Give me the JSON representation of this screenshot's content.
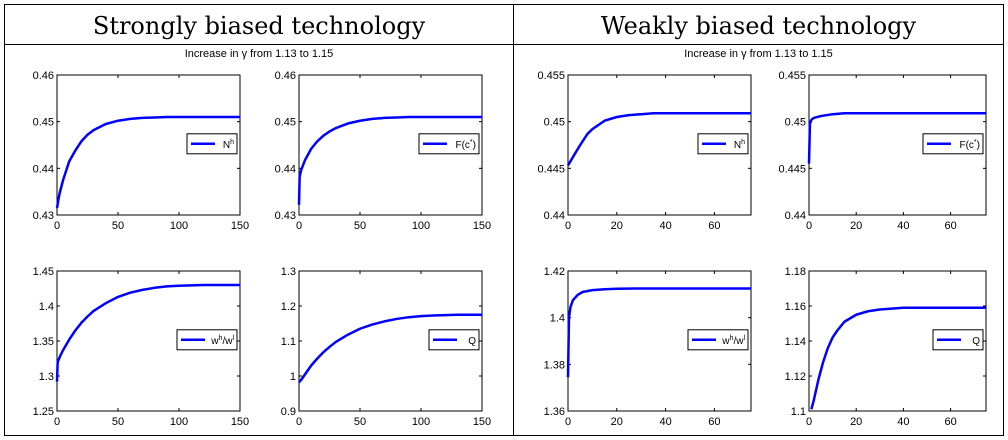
{
  "panels": [
    {
      "title": "Strongly biased technology",
      "subtitle": "Increase in γ from 1.13 to 1.15"
    },
    {
      "title": "Weakly biased technology",
      "subtitle": "Increase in γ from 1.13 to 1.15"
    }
  ],
  "colors": {
    "series": "#0000ff",
    "axis": "#000000",
    "background": "#ffffff"
  },
  "chart_data": [
    {
      "type": "line",
      "panel": "Strongly biased technology",
      "legend": {
        "base": "N",
        "sup": "h"
      },
      "legend_position": "right",
      "xlim": [
        0,
        150
      ],
      "ylim": [
        0.43,
        0.46
      ],
      "xticks": [
        0,
        50,
        100,
        150
      ],
      "yticks": [
        0.43,
        0.44,
        0.45,
        0.46
      ],
      "x": [
        0,
        2,
        5,
        10,
        15,
        20,
        25,
        30,
        40,
        50,
        60,
        70,
        80,
        90,
        100,
        110,
        120,
        130,
        140,
        150
      ],
      "y": [
        0.4315,
        0.4345,
        0.4375,
        0.4415,
        0.4438,
        0.4458,
        0.4472,
        0.4482,
        0.4495,
        0.4502,
        0.4506,
        0.4508,
        0.4509,
        0.451,
        0.451,
        0.451,
        0.451,
        0.451,
        0.451,
        0.451
      ]
    },
    {
      "type": "line",
      "panel": "Strongly biased technology",
      "legend": {
        "base": "F(c",
        "sup": "*",
        "tail": ")"
      },
      "legend_position": "right",
      "xlim": [
        0,
        150
      ],
      "ylim": [
        0.43,
        0.46
      ],
      "xticks": [
        0,
        50,
        100,
        150
      ],
      "yticks": [
        0.43,
        0.44,
        0.45,
        0.46
      ],
      "x": [
        0,
        0.5,
        1,
        2,
        5,
        10,
        15,
        20,
        25,
        30,
        40,
        50,
        60,
        70,
        80,
        90,
        100,
        110,
        120,
        130,
        140,
        150
      ],
      "y": [
        0.4322,
        0.438,
        0.4388,
        0.4398,
        0.4418,
        0.4442,
        0.4458,
        0.447,
        0.4479,
        0.4486,
        0.4496,
        0.4502,
        0.4506,
        0.4508,
        0.4509,
        0.451,
        0.451,
        0.451,
        0.451,
        0.451,
        0.451,
        0.451
      ]
    },
    {
      "type": "line",
      "panel": "Strongly biased technology",
      "legend": {
        "base": "w",
        "sup": "h",
        "mid": "/w",
        "sup2": "l"
      },
      "legend_position": "right",
      "xlim": [
        0,
        150
      ],
      "ylim": [
        1.25,
        1.45
      ],
      "xticks": [
        0,
        50,
        100,
        150
      ],
      "yticks": [
        1.25,
        1.3,
        1.35,
        1.4,
        1.45
      ],
      "x": [
        0,
        0.5,
        1,
        3,
        5,
        10,
        15,
        20,
        25,
        30,
        40,
        50,
        60,
        70,
        80,
        90,
        100,
        110,
        120,
        130,
        140,
        150
      ],
      "y": [
        1.292,
        1.318,
        1.322,
        1.33,
        1.337,
        1.352,
        1.365,
        1.376,
        1.385,
        1.393,
        1.404,
        1.413,
        1.419,
        1.423,
        1.426,
        1.428,
        1.429,
        1.4295,
        1.43,
        1.43,
        1.43,
        1.43
      ]
    },
    {
      "type": "line",
      "panel": "Strongly biased technology",
      "legend": {
        "base": "Q"
      },
      "legend_position": "right",
      "xlim": [
        0,
        150
      ],
      "ylim": [
        0.9,
        1.3
      ],
      "xticks": [
        0,
        50,
        100,
        150
      ],
      "yticks": [
        0.9,
        1.0,
        1.1,
        1.2,
        1.3
      ],
      "tick_labels_y": [
        "0.9",
        "1",
        "1.1",
        "1.2",
        "1.3"
      ],
      "x": [
        0,
        2,
        5,
        10,
        15,
        20,
        25,
        30,
        40,
        50,
        60,
        70,
        80,
        90,
        100,
        110,
        120,
        130,
        140,
        150
      ],
      "y": [
        0.982,
        0.99,
        1.005,
        1.03,
        1.05,
        1.068,
        1.083,
        1.097,
        1.118,
        1.135,
        1.147,
        1.156,
        1.163,
        1.168,
        1.171,
        1.173,
        1.174,
        1.175,
        1.175,
        1.175
      ]
    },
    {
      "type": "line",
      "panel": "Weakly biased technology",
      "legend": {
        "base": "N",
        "sup": "h"
      },
      "legend_position": "right",
      "xlim": [
        0,
        75
      ],
      "ylim": [
        0.44,
        0.455
      ],
      "xticks": [
        0,
        20,
        40,
        60
      ],
      "yticks": [
        0.44,
        0.445,
        0.45,
        0.455
      ],
      "x": [
        0,
        2,
        5,
        8,
        10,
        15,
        20,
        25,
        30,
        35,
        40,
        50,
        60,
        75
      ],
      "y": [
        0.4453,
        0.4462,
        0.4475,
        0.4487,
        0.4492,
        0.4501,
        0.4505,
        0.4507,
        0.4508,
        0.4509,
        0.4509,
        0.4509,
        0.4509,
        0.4509
      ]
    },
    {
      "type": "line",
      "panel": "Weakly biased technology",
      "legend": {
        "base": "F(c",
        "sup": "*",
        "tail": ")"
      },
      "legend_position": "right",
      "xlim": [
        0,
        75
      ],
      "ylim": [
        0.44,
        0.455
      ],
      "xticks": [
        0,
        20,
        40,
        60
      ],
      "yticks": [
        0.44,
        0.445,
        0.45,
        0.455
      ],
      "x": [
        0,
        0.4,
        1,
        2,
        5,
        10,
        15,
        20,
        30,
        40,
        60,
        75
      ],
      "y": [
        0.4455,
        0.4498,
        0.4502,
        0.4504,
        0.4506,
        0.4508,
        0.4509,
        0.4509,
        0.4509,
        0.4509,
        0.4509,
        0.4509
      ]
    },
    {
      "type": "line",
      "panel": "Weakly biased technology",
      "legend": {
        "base": "w",
        "sup": "h",
        "mid": "/w",
        "sup2": "l"
      },
      "legend_position": "right",
      "xlim": [
        0,
        75
      ],
      "ylim": [
        1.36,
        1.42
      ],
      "xticks": [
        0,
        20,
        40,
        60
      ],
      "yticks": [
        1.36,
        1.38,
        1.4,
        1.42
      ],
      "x": [
        0,
        0.4,
        1,
        2,
        4,
        6,
        10,
        15,
        20,
        30,
        40,
        60,
        75
      ],
      "y": [
        1.3745,
        1.4,
        1.4045,
        1.4075,
        1.4098,
        1.411,
        1.4118,
        1.4122,
        1.4124,
        1.4125,
        1.4125,
        1.4125,
        1.4125
      ]
    },
    {
      "type": "line",
      "panel": "Weakly biased technology",
      "legend": {
        "base": "Q"
      },
      "legend_position": "right",
      "xlim": [
        0,
        75
      ],
      "ylim": [
        1.1,
        1.18
      ],
      "xticks": [
        0,
        20,
        40,
        60
      ],
      "yticks": [
        1.1,
        1.12,
        1.14,
        1.16,
        1.18
      ],
      "x": [
        1,
        2,
        4,
        6,
        8,
        10,
        12,
        15,
        20,
        25,
        30,
        35,
        40,
        50,
        60,
        75
      ],
      "y": [
        1.101,
        1.106,
        1.118,
        1.128,
        1.136,
        1.142,
        1.146,
        1.151,
        1.155,
        1.157,
        1.158,
        1.1585,
        1.159,
        1.159,
        1.159,
        1.159
      ]
    }
  ]
}
